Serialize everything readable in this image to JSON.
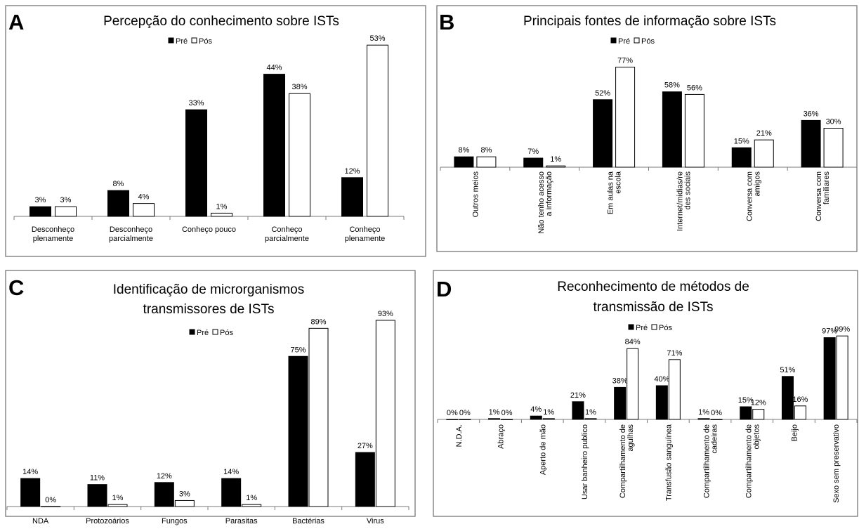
{
  "legend": {
    "pre": "Pré",
    "pos": "Pós"
  },
  "chart_data": [
    {
      "panel": "A",
      "type": "bar",
      "title": "Percepção do conhecimento sobre ISTs",
      "categories": [
        [
          "Desconheço",
          "plenamente"
        ],
        [
          "Desconheço",
          "parcialmente"
        ],
        [
          "Conheço pouco"
        ],
        [
          "Conheço",
          "parcialmente"
        ],
        [
          "Conheço",
          "plenamente"
        ]
      ],
      "series": [
        {
          "name": "Pré",
          "values": [
            3,
            8,
            33,
            44,
            12
          ],
          "labels": [
            "3%",
            "8%",
            "33%",
            "44%",
            "12%"
          ]
        },
        {
          "name": "Pós",
          "values": [
            3,
            4,
            1,
            38,
            53
          ],
          "labels": [
            "3%",
            "4%",
            "1%",
            "38%",
            "53%"
          ]
        }
      ],
      "ylim": [
        0,
        100
      ],
      "legend_position": "top-center"
    },
    {
      "panel": "B",
      "type": "bar",
      "title": "Principais fontes de informação sobre  ISTs",
      "categories": [
        [
          "Outros meios"
        ],
        [
          "Não tenho acesso",
          "a informação"
        ],
        [
          "Em aulas na",
          "escola"
        ],
        [
          "Internet/midias/re",
          "des sociais"
        ],
        [
          "Conversa com",
          "amigos"
        ],
        [
          "Conversa com",
          "familiares"
        ]
      ],
      "series": [
        {
          "name": "Pré",
          "values": [
            8,
            7,
            52,
            58,
            15,
            36
          ],
          "labels": [
            "8%",
            "7%",
            "52%",
            "58%",
            "15%",
            "36%"
          ]
        },
        {
          "name": "Pós",
          "values": [
            8,
            1,
            77,
            56,
            21,
            30
          ],
          "labels": [
            "8%",
            "1%",
            "77%",
            "56%",
            "21%",
            "30%"
          ]
        }
      ],
      "ylim": [
        0,
        100
      ],
      "legend_position": "top-center"
    },
    {
      "panel": "C",
      "type": "bar",
      "title": [
        "Identificação de microrganismos",
        "transmissores de ISTs"
      ],
      "categories": [
        [
          "NDA"
        ],
        [
          "Protozoários"
        ],
        [
          "Fungos"
        ],
        [
          "Parasitas"
        ],
        [
          "Bactérias"
        ],
        [
          "Virus"
        ]
      ],
      "series": [
        {
          "name": "Pré",
          "values": [
            14,
            11,
            12,
            14,
            75,
            27
          ],
          "labels": [
            "14%",
            "11%",
            "12%",
            "14%",
            "75%",
            "27%"
          ]
        },
        {
          "name": "Pós",
          "values": [
            0,
            1,
            3,
            1,
            89,
            93
          ],
          "labels": [
            "0%",
            "1%",
            "3%",
            "1%",
            "89%",
            "93%"
          ]
        }
      ],
      "ylim": [
        0,
        100
      ],
      "legend_position": "top-center"
    },
    {
      "panel": "D",
      "type": "bar",
      "title": [
        "Reconhecimento de métodos de",
        "transmissão de ISTs"
      ],
      "categories": [
        [
          "N.D.A."
        ],
        [
          "Abraço"
        ],
        [
          "Aperto de mão"
        ],
        [
          "Usar banheiro publico"
        ],
        [
          "Compartilhamento de",
          "agulhas"
        ],
        [
          "Transfusão sanguínea"
        ],
        [
          "Compartilhamento de",
          "cadeiras"
        ],
        [
          "Compartilhamento de",
          "objetos"
        ],
        [
          "Beijo"
        ],
        [
          "Sexo sem preservativo"
        ]
      ],
      "series": [
        {
          "name": "Pré",
          "values": [
            0,
            1,
            4,
            21,
            38,
            40,
            1,
            15,
            51,
            97
          ],
          "labels": [
            "0%",
            "1%",
            "4%",
            "21%",
            "38%",
            "40%",
            "1%",
            "15%",
            "51%",
            "97%"
          ]
        },
        {
          "name": "Pós",
          "values": [
            0,
            0,
            1,
            1,
            84,
            71,
            0,
            12,
            16,
            99
          ],
          "labels": [
            "0%",
            "0%",
            "1%",
            "1%",
            "84%",
            "71%",
            "0%",
            "12%",
            "16%",
            "99%"
          ]
        }
      ],
      "ylim": [
        0,
        100
      ],
      "legend_position": "top-center"
    }
  ]
}
